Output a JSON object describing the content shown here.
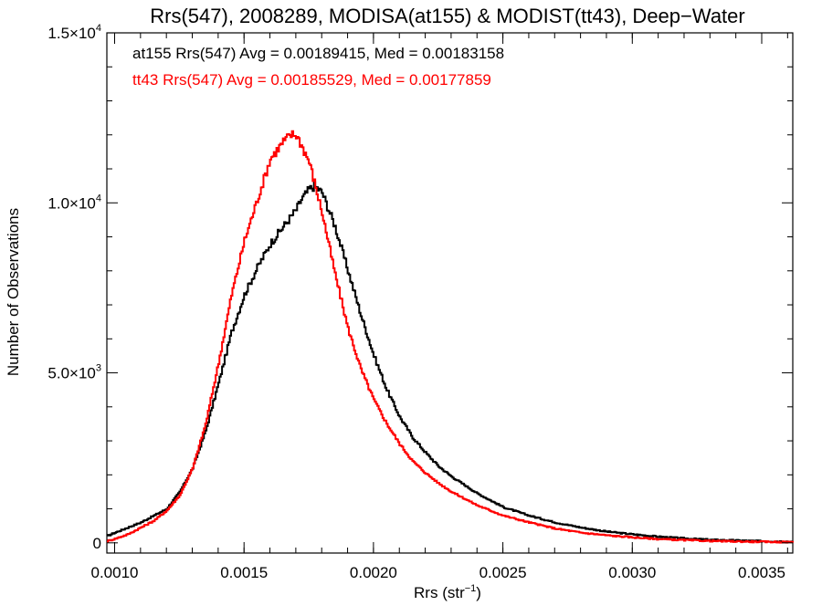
{
  "chart_data": {
    "type": "line",
    "title": "Rrs(547), 2008289, MODISA(at155) & MODIST(tt43), Deep−Water",
    "xlabel_main": "Rrs (str",
    "xlabel_sup": "−1",
    "xlabel_tail": ")",
    "ylabel": "Number of Observations",
    "xlim": [
      0.00097,
      0.00362
    ],
    "ylim": [
      -300,
      15000
    ],
    "x_ticks": [
      {
        "value": 0.001,
        "label": "0.0010"
      },
      {
        "value": 0.0015,
        "label": "0.0015"
      },
      {
        "value": 0.002,
        "label": "0.0020"
      },
      {
        "value": 0.0025,
        "label": "0.0025"
      },
      {
        "value": 0.003,
        "label": "0.0030"
      },
      {
        "value": 0.0035,
        "label": "0.0035"
      }
    ],
    "y_ticks": [
      {
        "value": 0,
        "mant": "0",
        "exp": ""
      },
      {
        "value": 5000,
        "mant": "5.0×10",
        "exp": "3"
      },
      {
        "value": 10000,
        "mant": "1.0×10",
        "exp": "4"
      },
      {
        "value": 15000,
        "mant": "1.5×10",
        "exp": "4"
      }
    ],
    "annotations": [
      {
        "text": "at155 Rrs(547) Avg = 0.00189415, Med = 0.00183158",
        "color": "#000000"
      },
      {
        "text": "tt43 Rrs(547) Avg = 0.00185529, Med = 0.00177859",
        "color": "#ff0000"
      }
    ],
    "series": [
      {
        "color": "#000000",
        "x": [
          0.00097,
          0.001,
          0.00105,
          0.0011,
          0.00115,
          0.0012,
          0.00125,
          0.0013,
          0.00135,
          0.0014,
          0.00145,
          0.0015,
          0.00155,
          0.0016,
          0.00165,
          0.0017,
          0.00172,
          0.00175,
          0.00177,
          0.0018,
          0.00185,
          0.0019,
          0.00195,
          0.002,
          0.00205,
          0.0021,
          0.00215,
          0.0022,
          0.00225,
          0.0023,
          0.00235,
          0.0024,
          0.00245,
          0.0025,
          0.0026,
          0.0027,
          0.0028,
          0.0029,
          0.003,
          0.0031,
          0.0032,
          0.0033,
          0.0034,
          0.0035,
          0.0036,
          0.00362
        ],
        "values": [
          200,
          300,
          450,
          600,
          800,
          1000,
          1500,
          2200,
          3300,
          4700,
          6200,
          7300,
          8100,
          8800,
          9300,
          9800,
          10100,
          10400,
          10500,
          10300,
          9300,
          8000,
          6700,
          5500,
          4500,
          3700,
          3100,
          2650,
          2250,
          1950,
          1700,
          1450,
          1250,
          1050,
          800,
          600,
          450,
          330,
          250,
          180,
          130,
          90,
          70,
          50,
          40,
          35
        ]
      },
      {
        "color": "#ff0000",
        "x": [
          0.00097,
          0.001,
          0.00105,
          0.0011,
          0.00115,
          0.0012,
          0.00125,
          0.0013,
          0.00135,
          0.0014,
          0.00145,
          0.0015,
          0.00155,
          0.0016,
          0.00165,
          0.00168,
          0.0017,
          0.00172,
          0.00175,
          0.0018,
          0.00185,
          0.0019,
          0.00195,
          0.002,
          0.00205,
          0.0021,
          0.00215,
          0.0022,
          0.00225,
          0.0023,
          0.00235,
          0.0024,
          0.00245,
          0.0025,
          0.0026,
          0.0027,
          0.0028,
          0.0029,
          0.003,
          0.0031,
          0.0032,
          0.0033,
          0.0034,
          0.0035,
          0.0036,
          0.00362
        ],
        "values": [
          50,
          120,
          250,
          450,
          650,
          950,
          1400,
          2200,
          3500,
          5300,
          7300,
          8900,
          10100,
          11300,
          11800,
          12000,
          12000,
          11700,
          11200,
          9700,
          7900,
          6300,
          5100,
          4200,
          3500,
          2900,
          2400,
          2050,
          1750,
          1500,
          1300,
          1100,
          950,
          800,
          600,
          420,
          300,
          220,
          160,
          110,
          80,
          55,
          40,
          30,
          22,
          20
        ]
      }
    ]
  }
}
